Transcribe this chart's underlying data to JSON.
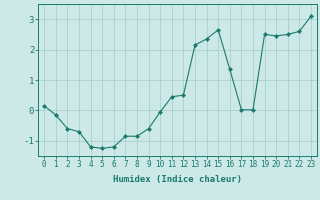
{
  "x": [
    0,
    1,
    2,
    3,
    4,
    5,
    6,
    7,
    8,
    9,
    10,
    11,
    12,
    13,
    14,
    15,
    16,
    17,
    18,
    19,
    20,
    21,
    22,
    23
  ],
  "y": [
    0.15,
    -0.15,
    -0.6,
    -0.7,
    -1.2,
    -1.25,
    -1.2,
    -0.85,
    -0.85,
    -0.6,
    -0.05,
    0.45,
    0.5,
    2.15,
    2.35,
    2.65,
    1.35,
    0.02,
    0.02,
    2.5,
    2.45,
    2.5,
    2.6,
    3.1
  ],
  "line_color": "#1a7a6e",
  "marker": "D",
  "marker_size": 2.0,
  "bg_color": "#cce9e7",
  "grid_color": "#aacfcc",
  "xlabel": "Humidex (Indice chaleur)",
  "ylim": [
    -1.5,
    3.5
  ],
  "xlim": [
    -0.5,
    23.5
  ],
  "yticks": [
    -1,
    0,
    1,
    2,
    3
  ],
  "xticks": [
    0,
    1,
    2,
    3,
    4,
    5,
    6,
    7,
    8,
    9,
    10,
    11,
    12,
    13,
    14,
    15,
    16,
    17,
    18,
    19,
    20,
    21,
    22,
    23
  ],
  "tick_color": "#1a7a6e",
  "axis_color": "#1a7a6e",
  "xlabel_fontsize": 6.5,
  "tick_fontsize": 5.5,
  "ytick_fontsize": 6.5
}
